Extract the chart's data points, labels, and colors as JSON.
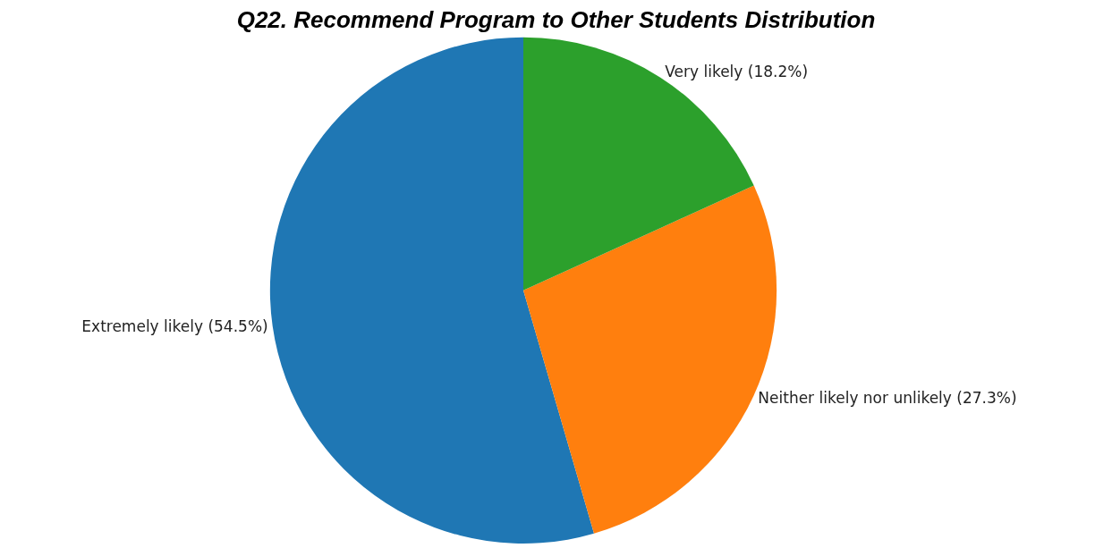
{
  "chart_data": {
    "type": "pie",
    "title": "Q22. Recommend Program to Other Students Distribution",
    "categories": [
      "Extremely likely (54.5%)",
      "Neither likely nor unlikely (27.3%)",
      "Very likely (18.2%)"
    ],
    "values": [
      54.5,
      27.3,
      18.2
    ],
    "colors": [
      "#1f77b4",
      "#ff7f0e",
      "#2ca02c"
    ],
    "legend": false
  }
}
